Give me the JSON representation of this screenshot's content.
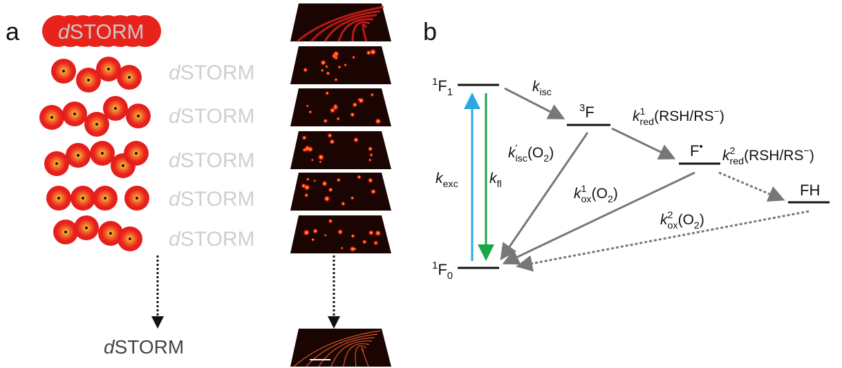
{
  "panel_a": {
    "letter": "a",
    "dstorm_labels": [
      [
        {
          "italic": "d"
        },
        {
          "text": "STORM"
        }
      ],
      [
        {
          "italic": "d"
        },
        {
          "text": "STORM"
        }
      ],
      [
        {
          "italic": "d"
        },
        {
          "text": "STORM"
        }
      ],
      [
        {
          "italic": "d"
        },
        {
          "text": "STORM"
        }
      ],
      [
        {
          "italic": "d"
        },
        {
          "text": "STORM"
        }
      ],
      [
        {
          "italic": "d"
        },
        {
          "text": "STORM"
        }
      ],
      [
        {
          "italic": "d"
        },
        {
          "text": "STORM"
        }
      ]
    ]
  },
  "panel_b": {
    "letter": "b",
    "states": [
      [
        {
          "sup": "1"
        },
        {
          "text": "F"
        },
        {
          "sub": "1"
        }
      ],
      [
        {
          "sup": "3"
        },
        {
          "text": "F"
        }
      ],
      [
        {
          "text": "F"
        },
        {
          "sup": "•"
        }
      ],
      [
        {
          "text": "FH"
        }
      ],
      [
        {
          "sup": "1"
        },
        {
          "text": "F"
        },
        {
          "sub": "0"
        }
      ]
    ],
    "rates": [
      [
        {
          "italic": "k"
        },
        {
          "sub": "isc"
        }
      ],
      [
        {
          "italic": "k"
        },
        {
          "sup": "1"
        },
        {
          "sub": "red"
        },
        {
          "text": "(RSH/RS"
        },
        {
          "sup": "−"
        },
        {
          "text": ")"
        }
      ],
      [
        {
          "italic": "k"
        },
        {
          "sup": "′"
        },
        {
          "sub": "isc"
        },
        {
          "text": "(O"
        },
        {
          "sub": "2"
        },
        {
          "text": ")"
        }
      ],
      [
        {
          "italic": "k"
        },
        {
          "sub": "exc"
        }
      ],
      [
        {
          "italic": "k"
        },
        {
          "sub": "fl"
        }
      ],
      [
        {
          "italic": "k"
        },
        {
          "sup": "1"
        },
        {
          "sub": "ox"
        },
        {
          "text": "(O"
        },
        {
          "sub": "2"
        },
        {
          "text": ")"
        }
      ],
      [
        {
          "italic": "k"
        },
        {
          "sup": "2"
        },
        {
          "sub": "red"
        },
        {
          "text": "(RSH/RS"
        },
        {
          "sup": "−"
        },
        {
          "text": ")"
        }
      ],
      [
        {
          "italic": "k"
        },
        {
          "sup": "2"
        },
        {
          "sub": "ox"
        },
        {
          "text": "(O"
        },
        {
          "sub": "2"
        },
        {
          "text": ")"
        }
      ]
    ]
  }
}
